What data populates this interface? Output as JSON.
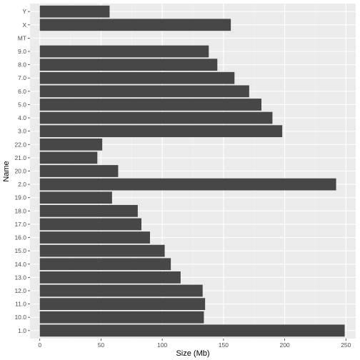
{
  "chart_data": {
    "type": "bar",
    "orientation": "horizontal",
    "xlabel": "Size (Mb)",
    "ylabel": "Name",
    "xlim": [
      -8,
      258
    ],
    "xticks": [
      0,
      50,
      100,
      150,
      200,
      250
    ],
    "xtick_labels": [
      "0",
      "50",
      "100",
      "150",
      "200",
      "250"
    ],
    "grid": true,
    "categories": [
      "1.0",
      "10.0",
      "11.0",
      "12.0",
      "13.0",
      "14.0",
      "15.0",
      "16.0",
      "17.0",
      "18.0",
      "19.0",
      "2.0",
      "20.0",
      "21.0",
      "22.0",
      "3.0",
      "4.0",
      "5.0",
      "6.0",
      "7.0",
      "8.0",
      "9.0",
      "MT",
      "X",
      "Y"
    ],
    "values": [
      249,
      134,
      135,
      133,
      115,
      107,
      102,
      90,
      83,
      80,
      59,
      242,
      64,
      47,
      51,
      198,
      190,
      181,
      171,
      159,
      145,
      138,
      0,
      156,
      57
    ],
    "colors": {
      "bar": "#474747",
      "panel": "#ebebeb",
      "grid_major": "#ffffff",
      "grid_minor": "#f5f5f5",
      "tick_text": "#4d4d4d",
      "tick_mark": "#333333"
    }
  }
}
